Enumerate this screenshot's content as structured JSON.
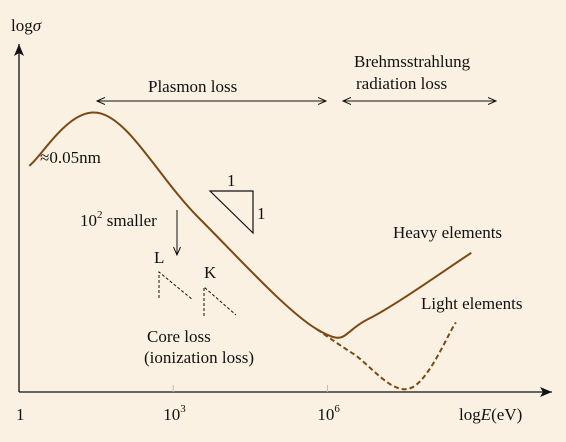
{
  "chart_data": {
    "type": "line",
    "title": "",
    "ylabel": {
      "main": "log",
      "sym": "σ"
    },
    "xlabel": {
      "main": "log",
      "sym": "E",
      "unit": "(eV)"
    },
    "x_ticks": [
      {
        "value": 0,
        "label": "1"
      },
      {
        "value": 3,
        "label": "10",
        "exp": "3"
      },
      {
        "value": 6,
        "label": "10",
        "exp": "6"
      }
    ],
    "xlim": [
      0,
      10
    ],
    "ylim": [
      0,
      10
    ],
    "series": [
      {
        "name": "Heavy elements",
        "style": "solid",
        "color": "#7a4a12",
        "points": [
          [
            0.2,
            6.5
          ],
          [
            1.6,
            8.0
          ],
          [
            3.5,
            5.0
          ],
          [
            5.8,
            1.8
          ],
          [
            6.8,
            2.1
          ],
          [
            8.8,
            4.0
          ]
        ]
      },
      {
        "name": "Light elements",
        "style": "dashed",
        "color": "#7a4a12",
        "points": [
          [
            5.8,
            1.8
          ],
          [
            6.5,
            1.1
          ],
          [
            7.6,
            0.1
          ],
          [
            8.5,
            2.0
          ]
        ]
      }
    ],
    "annotations": {
      "plasmon": "Plasmon loss",
      "brems_line1": "Brehmsstrahlung",
      "brems_line2": "radiation loss",
      "wavelength": "≈0.05nm",
      "smaller_base": "10",
      "smaller_exp": "2",
      "smaller_text": " smaller",
      "slope_run": "1",
      "slope_rise": "1",
      "edge_L": "L",
      "edge_K": "K",
      "core_line1": "Core loss",
      "core_line2": "(ionization loss)"
    }
  }
}
